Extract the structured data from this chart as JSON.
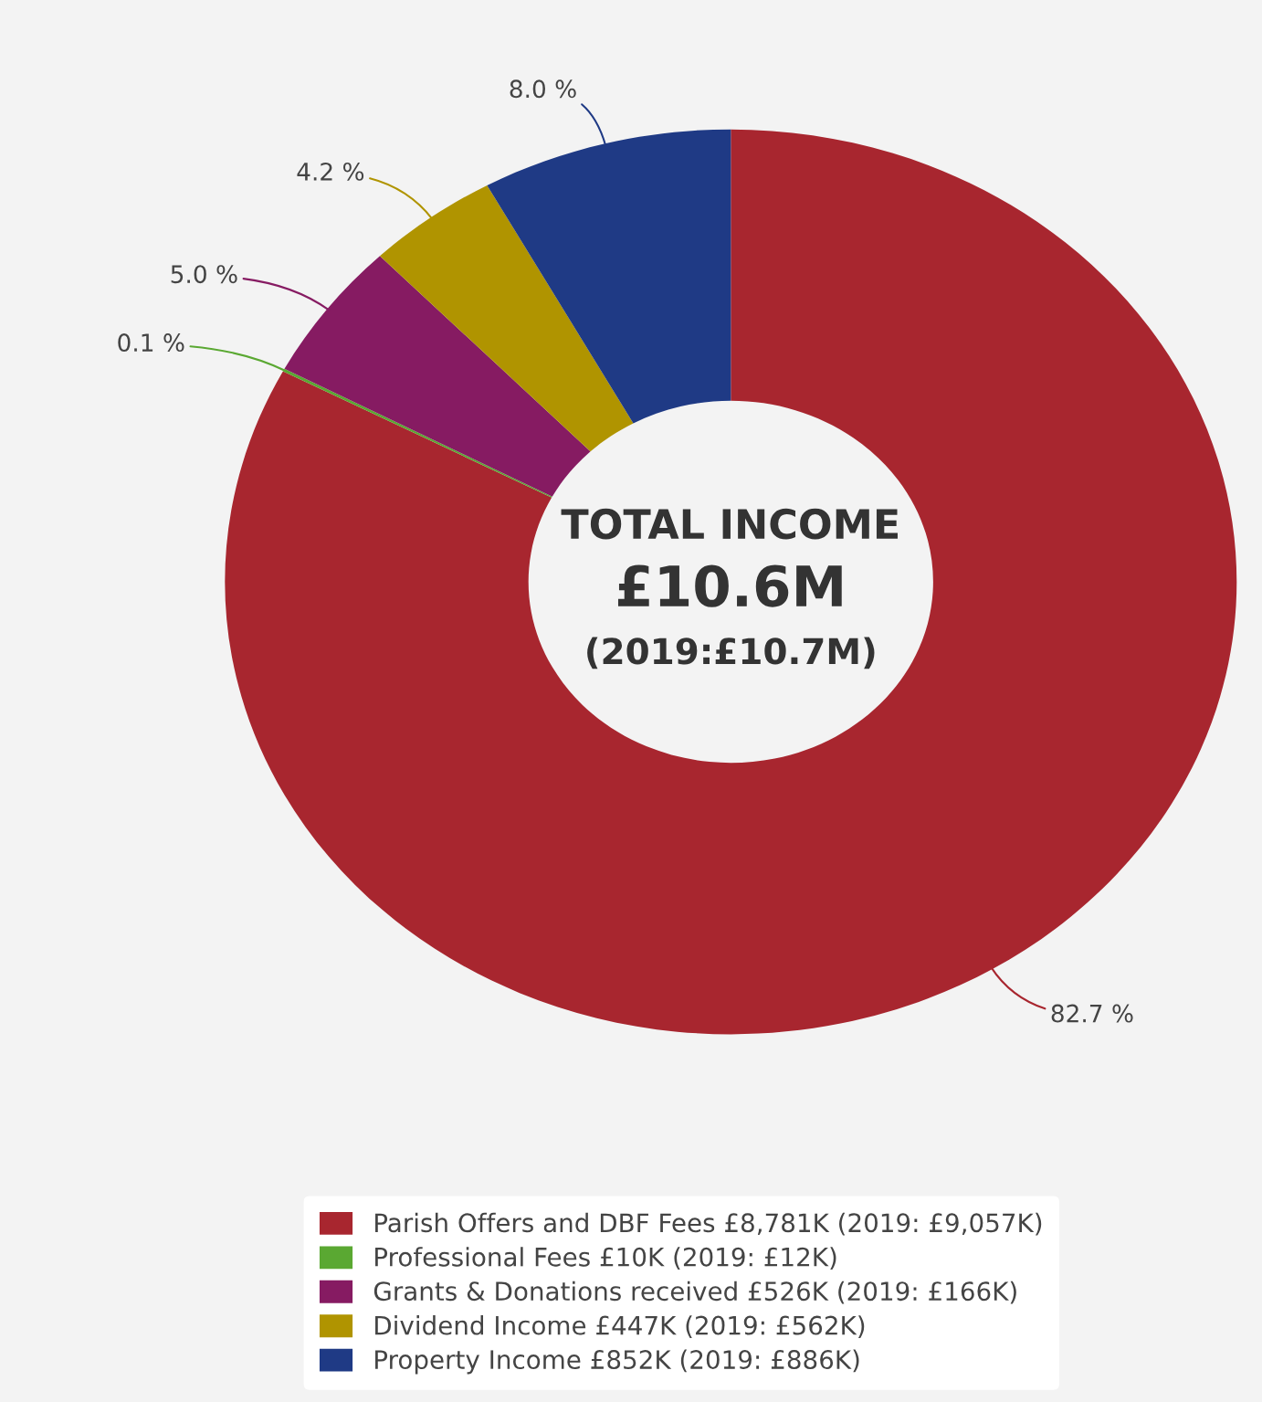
{
  "chart_data": {
    "type": "donut",
    "title": "TOTAL INCOME",
    "subtitle": "£10.6M",
    "annotations": [
      "(2019:£10.7M)"
    ],
    "categories": [
      "Parish Offers and DBF Fees £8,781K (2019: £9,057K)",
      "Professional Fees £10K (2019: £12K)",
      "Grants & Donations received £526K (2019: £166K)",
      "Dividend Income £447K (2019: £562K)",
      "Property Income £852K (2019: £886K)"
    ],
    "values": [
      82.7,
      0.1,
      5.0,
      4.2,
      8.0
    ],
    "value_labels": [
      "82.7 %",
      "0.1 %",
      "5.0 %",
      "4.2 %",
      "8.0 %"
    ],
    "colors": [
      "#a8262f",
      "#5aa832",
      "#861b62",
      "#b09400",
      "#1f3a85"
    ],
    "legend": "bottom"
  }
}
